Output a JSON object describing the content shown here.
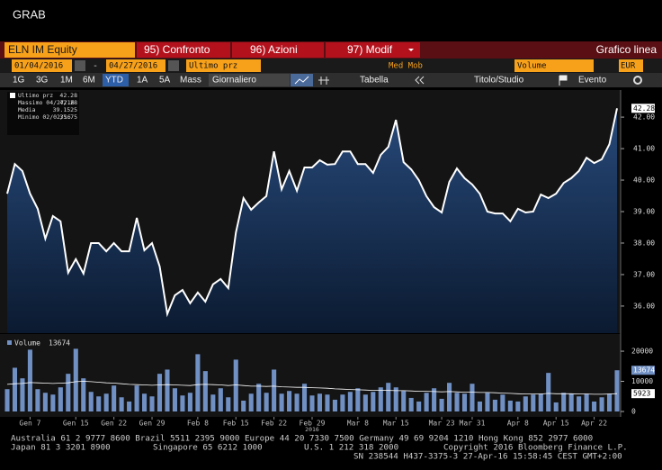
{
  "window": {
    "title": "GRAB"
  },
  "toolbar1": {
    "ticker": "ELN IM Equity",
    "buttons": [
      "95) Confronto",
      "96) Azioni",
      "97) Modif"
    ],
    "chart_type": "Grafico linea"
  },
  "toolbar2": {
    "start": "01/04/2016",
    "separator": "-",
    "end": "04/27/2016",
    "field": "Ultimo prz",
    "study": "Med Mob",
    "lower": "Volume",
    "currency": "EUR"
  },
  "toolbar3": {
    "periods": [
      "1G",
      "3G",
      "1M",
      "6M",
      "YTD",
      "1A",
      "5A",
      "Mass"
    ],
    "frequency": "Giornaliero",
    "table": "Tabella",
    "study": "Titolo/Studio",
    "event": "Evento"
  },
  "legend": [
    {
      "label": "Ultimo prz",
      "value": 42.28
    },
    {
      "label": "Massimo 04/27/16",
      "value": 42.28
    },
    {
      "label": "Media",
      "value": 39.1525
    },
    {
      "label": "Minimo 02/02/16",
      "value": 35.75
    }
  ],
  "chart_data": [
    {
      "type": "line",
      "color": "#ffffff",
      "fill": "#1c3a66",
      "categories": [
        null,
        null,
        null,
        "Gen 7",
        null,
        null,
        null,
        null,
        null,
        "Gen 15",
        null,
        null,
        null,
        null,
        "Gen 22",
        null,
        null,
        null,
        null,
        "Gen 29",
        null,
        null,
        null,
        null,
        null,
        "Feb 8",
        null,
        null,
        null,
        null,
        "Feb 15",
        null,
        null,
        null,
        null,
        "Feb 22",
        null,
        null,
        null,
        null,
        "Feb 29",
        null,
        null,
        null,
        null,
        null,
        "Mar 8",
        null,
        null,
        null,
        null,
        "Mar 15",
        null,
        null,
        null,
        null,
        null,
        "Mar 23",
        null,
        null,
        null,
        "Mar 31",
        null,
        null,
        null,
        null,
        null,
        "Apr 8",
        null,
        null,
        null,
        null,
        "Apr 15",
        null,
        null,
        null,
        null,
        "Apr 22",
        null,
        null,
        null
      ],
      "year_label": "2016",
      "values": [
        39.57,
        40.51,
        40.29,
        39.57,
        39.09,
        38.14,
        38.86,
        38.69,
        37.06,
        37.49,
        37.03,
        38.0,
        38.0,
        37.74,
        38.0,
        37.74,
        37.74,
        38.8,
        37.77,
        38.0,
        37.26,
        35.75,
        36.34,
        36.51,
        36.09,
        36.43,
        36.14,
        36.69,
        36.86,
        36.57,
        38.34,
        39.43,
        39.06,
        39.29,
        39.49,
        40.91,
        39.71,
        40.29,
        39.66,
        40.4,
        40.4,
        40.63,
        40.49,
        40.51,
        40.91,
        40.91,
        40.51,
        40.51,
        40.23,
        40.8,
        41.06,
        41.91,
        40.57,
        40.34,
        40.0,
        39.49,
        39.14,
        38.97,
        39.94,
        40.37,
        40.06,
        39.86,
        39.57,
        39.0,
        38.94,
        38.94,
        38.69,
        39.09,
        38.97,
        39.0,
        39.54,
        39.43,
        39.57,
        39.91,
        40.06,
        40.29,
        40.71,
        40.54,
        40.66,
        41.14,
        42.28
      ],
      "ylim": [
        35.14,
        42.86
      ],
      "yticks": [
        {
          "value": 36,
          "label": "36.00"
        },
        {
          "value": 37,
          "label": "37.00"
        },
        {
          "value": 38,
          "label": "38.00"
        },
        {
          "value": 39,
          "label": "39.00"
        },
        {
          "value": 40,
          "label": "40.00"
        },
        {
          "value": 41,
          "label": "41.00"
        },
        {
          "value": 42,
          "label": "42.00"
        }
      ]
    },
    {
      "type": "bar",
      "series": [
        {
          "name": "Volume",
          "color": "#7090c4",
          "values": [
            7400,
            14500,
            11000,
            20500,
            7400,
            6200,
            5600,
            8000,
            12500,
            20800,
            11000,
            6500,
            5000,
            5900,
            8600,
            4700,
            3300,
            8600,
            5900,
            5000,
            12500,
            13900,
            7700,
            5300,
            6200,
            19000,
            13400,
            5600,
            7700,
            4700,
            17200,
            3600,
            5900,
            9200,
            6200,
            13900,
            5900,
            6800,
            5900,
            9200,
            5300,
            5900,
            5600,
            3900,
            5600,
            6500,
            7700,
            5600,
            6500,
            8000,
            9500,
            8000,
            6800,
            4500,
            3300,
            6200,
            7700,
            4200,
            9500,
            6200,
            5900,
            9200,
            3300,
            6200,
            3900,
            5600,
            3600,
            3300,
            5000,
            5600,
            5900,
            12800,
            3000,
            6200,
            5900,
            5000,
            5900,
            3300,
            4700,
            5900,
            13674
          ]
        },
        {
          "color": "#ffffff",
          "values": [
            9000,
            9200,
            9300,
            9600,
            9500,
            9400,
            9300,
            9400,
            9500,
            9900,
            10000,
            9900,
            9700,
            9500,
            9400,
            9200,
            9000,
            8900,
            8800,
            8700,
            8800,
            8900,
            8800,
            8700,
            8600,
            8900,
            9000,
            8900,
            8800,
            8600,
            8800,
            8600,
            8400,
            8400,
            8300,
            8400,
            8200,
            8100,
            8000,
            8000,
            7900,
            7800,
            7700,
            7500,
            7400,
            7300,
            7200,
            7100,
            7000,
            7000,
            7000,
            6900,
            6900,
            6800,
            6700,
            6700,
            6600,
            6500,
            6600,
            6500,
            6400,
            6400,
            6300,
            6300,
            6200,
            6100,
            6000,
            5900,
            5800,
            5800,
            5800,
            6000,
            5900,
            5900,
            5900,
            5800,
            5800,
            5700,
            5700,
            5800,
            5923
          ]
        }
      ],
      "ylim": [
        0,
        23600
      ],
      "yticks": [
        0,
        10000,
        20000
      ]
    }
  ],
  "footer": [
    "Australia 61 2 9777 8600 Brazil 5511 2395 9000 Europe 44 20 7330 7500 Germany 49 69 9204 1210 Hong Kong 852 2977 6000",
    "Japan 81 3 3201 8900",
    "Singapore 65 6212 1000",
    "U.S. 1 212 318 2000",
    "Copyright 2016 Bloomberg Finance L.P.",
    "SN 238544 H437-3375-3 27-Apr-16 15:58:45 CEST GMT+2:00"
  ]
}
